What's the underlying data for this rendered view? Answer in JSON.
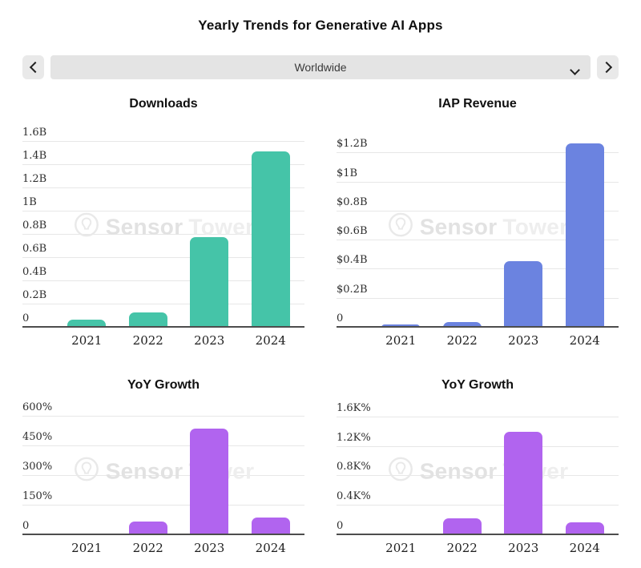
{
  "page": {
    "title": "Yearly Trends for Generative AI Apps"
  },
  "selector": {
    "value": "Worldwide",
    "prev_icon": "chevron-left",
    "next_icon": "chevron-right",
    "caret_icon": "chevron-down"
  },
  "watermark": {
    "first": "Sensor",
    "second": "Tower",
    "logo_icon": "sensortower-logo"
  },
  "colors": {
    "downloads_bar": "#45c4a8",
    "revenue_bar": "#6b83e0",
    "growth_bar": "#b164ef",
    "gridline": "#e7e7e7",
    "axis": "#4d4d4d",
    "control_bg": "#e7e7e7",
    "watermark": "#e8e8e8"
  },
  "chart_data": [
    {
      "id": "downloads",
      "type": "bar",
      "title": "Downloads",
      "categories": [
        "2021",
        "2022",
        "2023",
        "2024"
      ],
      "values": [
        0.07,
        0.13,
        0.78,
        1.52
      ],
      "unit": "B",
      "color": "#45c4a8",
      "ylim": [
        0,
        1.74
      ],
      "grid": true,
      "legend": false,
      "yticks": [
        {
          "v": 0,
          "label": "0"
        },
        {
          "v": 0.2,
          "label": "0.2B"
        },
        {
          "v": 0.4,
          "label": "0.4B"
        },
        {
          "v": 0.6,
          "label": "0.6B"
        },
        {
          "v": 0.8,
          "label": "0.8B"
        },
        {
          "v": 1.0,
          "label": "1B"
        },
        {
          "v": 1.2,
          "label": "1.2B"
        },
        {
          "v": 1.4,
          "label": "1.4B"
        },
        {
          "v": 1.6,
          "label": "1.6B"
        }
      ]
    },
    {
      "id": "iap-revenue",
      "type": "bar",
      "title": "IAP Revenue",
      "categories": [
        "2021",
        "2022",
        "2023",
        "2024"
      ],
      "values": [
        0.02,
        0.04,
        0.46,
        1.27
      ],
      "unit": "$B",
      "color": "#6b83e0",
      "ylim": [
        0,
        1.39
      ],
      "grid": true,
      "legend": false,
      "yticks": [
        {
          "v": 0,
          "label": "0"
        },
        {
          "v": 0.2,
          "label": "$0.2B"
        },
        {
          "v": 0.4,
          "label": "$0.4B"
        },
        {
          "v": 0.6,
          "label": "$0.6B"
        },
        {
          "v": 0.8,
          "label": "$0.8B"
        },
        {
          "v": 1.0,
          "label": "$1B"
        },
        {
          "v": 1.2,
          "label": "$1.2B"
        }
      ]
    },
    {
      "id": "yoy-growth-downloads",
      "type": "bar",
      "title": "YoY Growth",
      "categories": [
        "2021",
        "2022",
        "2023",
        "2024"
      ],
      "values": [
        5,
        70,
        540,
        90
      ],
      "unit": "%",
      "color": "#b164ef",
      "ylim": [
        0,
        650
      ],
      "grid": true,
      "legend": false,
      "yticks": [
        {
          "v": 0,
          "label": "0"
        },
        {
          "v": 150,
          "label": "150%"
        },
        {
          "v": 300,
          "label": "300%"
        },
        {
          "v": 450,
          "label": "450%"
        },
        {
          "v": 600,
          "label": "600%"
        }
      ]
    },
    {
      "id": "yoy-growth-revenue",
      "type": "bar",
      "title": "YoY Growth",
      "categories": [
        "2021",
        "2022",
        "2023",
        "2024"
      ],
      "values": [
        8,
        230,
        1400,
        175
      ],
      "unit": "%",
      "color": "#b164ef",
      "ylim": [
        0,
        1740
      ],
      "grid": true,
      "legend": false,
      "yticks": [
        {
          "v": 0,
          "label": "0"
        },
        {
          "v": 400,
          "label": "0.4K%"
        },
        {
          "v": 800,
          "label": "0.8K%"
        },
        {
          "v": 1200,
          "label": "1.2K%"
        },
        {
          "v": 1600,
          "label": "1.6K%"
        }
      ]
    }
  ]
}
